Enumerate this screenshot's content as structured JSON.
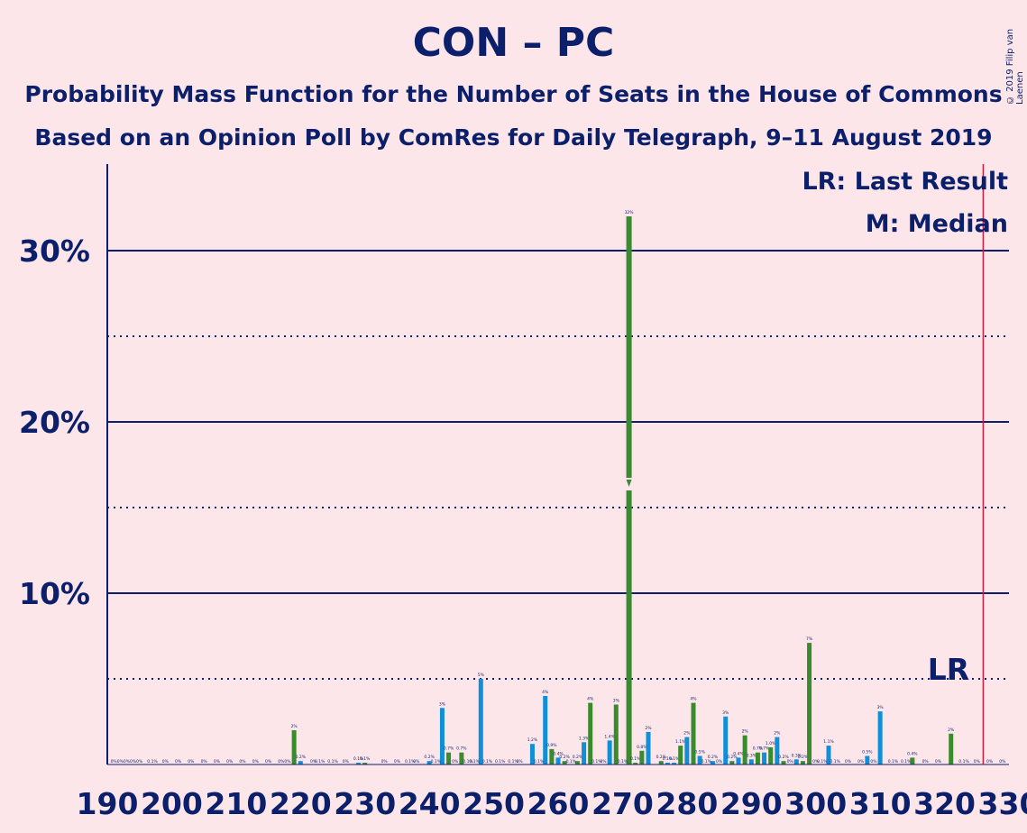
{
  "title": "CON – PC",
  "subtitle1": "Probability Mass Function for the Number of Seats in the House of Commons",
  "subtitle2": "Based on an Opinion Poll by ComRes for Daily Telegraph, 9–11 August 2019",
  "copyright": "© 2019 Filip van Laenen",
  "legend": {
    "lr": "LR: Last Result",
    "median": "M: Median"
  },
  "lr_marker_label": "LR",
  "colors": {
    "background": "#FDE6EA",
    "text": "#0B1F6B",
    "blue": "#0E8FD8",
    "green": "#3A8A2E",
    "lr_line": "#CC1E3C"
  },
  "chart_data": {
    "type": "bar",
    "xlim": [
      190,
      330
    ],
    "ylim": [
      0,
      35
    ],
    "x_ticks": [
      190,
      200,
      210,
      220,
      230,
      240,
      250,
      260,
      270,
      280,
      290,
      300,
      310,
      320,
      330
    ],
    "y_ticks": [
      {
        "value": 10,
        "label": "10%"
      },
      {
        "value": 20,
        "label": "20%"
      },
      {
        "value": 30,
        "label": "30%"
      }
    ],
    "y_dotted": [
      5,
      15,
      25
    ],
    "last_result": 326,
    "median": 271,
    "bars": [
      {
        "x": 219,
        "y": 2.0,
        "color": "green",
        "label": "2%"
      },
      {
        "x": 220,
        "y": 0.2,
        "color": "blue",
        "label": "0.2%"
      },
      {
        "x": 229,
        "y": 0.1,
        "color": "blue",
        "label": "0.1%"
      },
      {
        "x": 230,
        "y": 0.1,
        "color": "green",
        "label": "0.1%"
      },
      {
        "x": 240,
        "y": 0.2,
        "color": "blue",
        "label": "0.2%"
      },
      {
        "x": 242,
        "y": 3.3,
        "color": "blue",
        "label": "3%"
      },
      {
        "x": 243,
        "y": 0.7,
        "color": "green",
        "label": "0.7%"
      },
      {
        "x": 245,
        "y": 0.7,
        "color": "green",
        "label": "0.7%"
      },
      {
        "x": 248,
        "y": 5.0,
        "color": "blue",
        "label": "5%"
      },
      {
        "x": 256,
        "y": 1.2,
        "color": "blue",
        "label": "1.2%"
      },
      {
        "x": 258,
        "y": 4.0,
        "color": "blue",
        "label": "4%"
      },
      {
        "x": 259,
        "y": 0.9,
        "color": "green",
        "label": "0.9%"
      },
      {
        "x": 260,
        "y": 0.4,
        "color": "blue",
        "label": "0.4%"
      },
      {
        "x": 261,
        "y": 0.2,
        "color": "green",
        "label": "0.2%"
      },
      {
        "x": 263,
        "y": 0.2,
        "color": "green",
        "label": "0.2%"
      },
      {
        "x": 264,
        "y": 1.3,
        "color": "blue",
        "label": "1.3%"
      },
      {
        "x": 265,
        "y": 3.6,
        "color": "green",
        "label": "4%"
      },
      {
        "x": 268,
        "y": 1.4,
        "color": "blue",
        "label": "1.4%"
      },
      {
        "x": 269,
        "y": 3.5,
        "color": "green",
        "label": "3%"
      },
      {
        "x": 271,
        "y": 32.0,
        "color": "green",
        "label": "32%"
      },
      {
        "x": 272,
        "y": 0.1,
        "color": "green",
        "label": "0.1%"
      },
      {
        "x": 273,
        "y": 0.8,
        "color": "green",
        "label": "0.8%"
      },
      {
        "x": 274,
        "y": 1.9,
        "color": "blue",
        "label": "2%"
      },
      {
        "x": 276,
        "y": 0.2,
        "color": "green",
        "label": "0.2%"
      },
      {
        "x": 277,
        "y": 0.1,
        "color": "blue",
        "label": "0.1%"
      },
      {
        "x": 278,
        "y": 0.1,
        "color": "blue",
        "label": "0.1%"
      },
      {
        "x": 279,
        "y": 1.1,
        "color": "green",
        "label": "1.1%"
      },
      {
        "x": 280,
        "y": 1.6,
        "color": "blue",
        "label": "2%"
      },
      {
        "x": 281,
        "y": 3.6,
        "color": "green",
        "label": "4%"
      },
      {
        "x": 282,
        "y": 0.5,
        "color": "blue",
        "label": "0.5%"
      },
      {
        "x": 284,
        "y": 0.2,
        "color": "blue",
        "label": "0.2%"
      },
      {
        "x": 286,
        "y": 2.8,
        "color": "blue",
        "label": "3%"
      },
      {
        "x": 287,
        "y": 0.2,
        "color": "green",
        "label": "0.2%"
      },
      {
        "x": 288,
        "y": 0.4,
        "color": "blue",
        "label": "0.4%"
      },
      {
        "x": 289,
        "y": 1.7,
        "color": "green",
        "label": "2%"
      },
      {
        "x": 290,
        "y": 0.3,
        "color": "blue",
        "label": "0.3%"
      },
      {
        "x": 291,
        "y": 0.7,
        "color": "green",
        "label": "0.7%"
      },
      {
        "x": 292,
        "y": 0.7,
        "color": "blue",
        "label": "0.7%"
      },
      {
        "x": 293,
        "y": 1.0,
        "color": "green",
        "label": "1.0%"
      },
      {
        "x": 294,
        "y": 1.6,
        "color": "blue",
        "label": "2%"
      },
      {
        "x": 295,
        "y": 0.2,
        "color": "green",
        "label": "0.2%"
      },
      {
        "x": 297,
        "y": 0.3,
        "color": "blue",
        "label": "0.3%"
      },
      {
        "x": 298,
        "y": 0.2,
        "color": "green",
        "label": "0.2%"
      },
      {
        "x": 299,
        "y": 7.1,
        "color": "green",
        "label": "7%"
      },
      {
        "x": 302,
        "y": 1.1,
        "color": "blue",
        "label": "1.1%"
      },
      {
        "x": 308,
        "y": 0.5,
        "color": "blue",
        "label": "0.5%"
      },
      {
        "x": 310,
        "y": 3.1,
        "color": "blue",
        "label": "3%"
      },
      {
        "x": 315,
        "y": 0.4,
        "color": "green",
        "label": "0.4%"
      },
      {
        "x": 321,
        "y": 1.8,
        "color": "green",
        "label": "2%"
      }
    ],
    "zero_labels": [
      {
        "x": 191,
        "label": "0%"
      },
      {
        "x": 192,
        "label": "0%"
      },
      {
        "x": 193,
        "label": "0%"
      },
      {
        "x": 194,
        "label": "0%"
      },
      {
        "x": 195,
        "label": "0%"
      },
      {
        "x": 197,
        "label": "0.1%"
      },
      {
        "x": 199,
        "label": "0%"
      },
      {
        "x": 201,
        "label": "0%"
      },
      {
        "x": 203,
        "label": "0%"
      },
      {
        "x": 205,
        "label": "0%"
      },
      {
        "x": 207,
        "label": "0%"
      },
      {
        "x": 209,
        "label": "0%"
      },
      {
        "x": 211,
        "label": "0%"
      },
      {
        "x": 213,
        "label": "0%"
      },
      {
        "x": 215,
        "label": "0%"
      },
      {
        "x": 217,
        "label": "0%"
      },
      {
        "x": 218,
        "label": "0%"
      },
      {
        "x": 222,
        "label": "0%"
      },
      {
        "x": 223,
        "label": "0.1%"
      },
      {
        "x": 225,
        "label": "0.1%"
      },
      {
        "x": 227,
        "label": "0%"
      },
      {
        "x": 233,
        "label": "0%"
      },
      {
        "x": 235,
        "label": "0%"
      },
      {
        "x": 237,
        "label": "0.1%"
      },
      {
        "x": 238,
        "label": "0%"
      },
      {
        "x": 241,
        "label": "0.1%"
      },
      {
        "x": 244,
        "label": "0%"
      },
      {
        "x": 246,
        "label": "0.1%"
      },
      {
        "x": 247,
        "label": "0.1%"
      },
      {
        "x": 249,
        "label": "0.1%"
      },
      {
        "x": 251,
        "label": "0.1%"
      },
      {
        "x": 253,
        "label": "0.1%"
      },
      {
        "x": 254,
        "label": "0%"
      },
      {
        "x": 257,
        "label": "0.1%"
      },
      {
        "x": 262,
        "label": "0.1%"
      },
      {
        "x": 266,
        "label": "0.1%"
      },
      {
        "x": 267,
        "label": "0%"
      },
      {
        "x": 270,
        "label": "0.1%"
      },
      {
        "x": 283,
        "label": "0.1%"
      },
      {
        "x": 285,
        "label": "0%"
      },
      {
        "x": 296,
        "label": "0%"
      },
      {
        "x": 300,
        "label": "0%"
      },
      {
        "x": 301,
        "label": "0.1%"
      },
      {
        "x": 303,
        "label": "0.1%"
      },
      {
        "x": 305,
        "label": "0%"
      },
      {
        "x": 307,
        "label": "0%"
      },
      {
        "x": 309,
        "label": "0%"
      },
      {
        "x": 312,
        "label": "0.1%"
      },
      {
        "x": 314,
        "label": "0.1%"
      },
      {
        "x": 317,
        "label": "0%"
      },
      {
        "x": 319,
        "label": "0%"
      },
      {
        "x": 323,
        "label": "0.1%"
      },
      {
        "x": 325,
        "label": "0%"
      },
      {
        "x": 327,
        "label": "0%"
      },
      {
        "x": 329,
        "label": "0%"
      }
    ]
  }
}
